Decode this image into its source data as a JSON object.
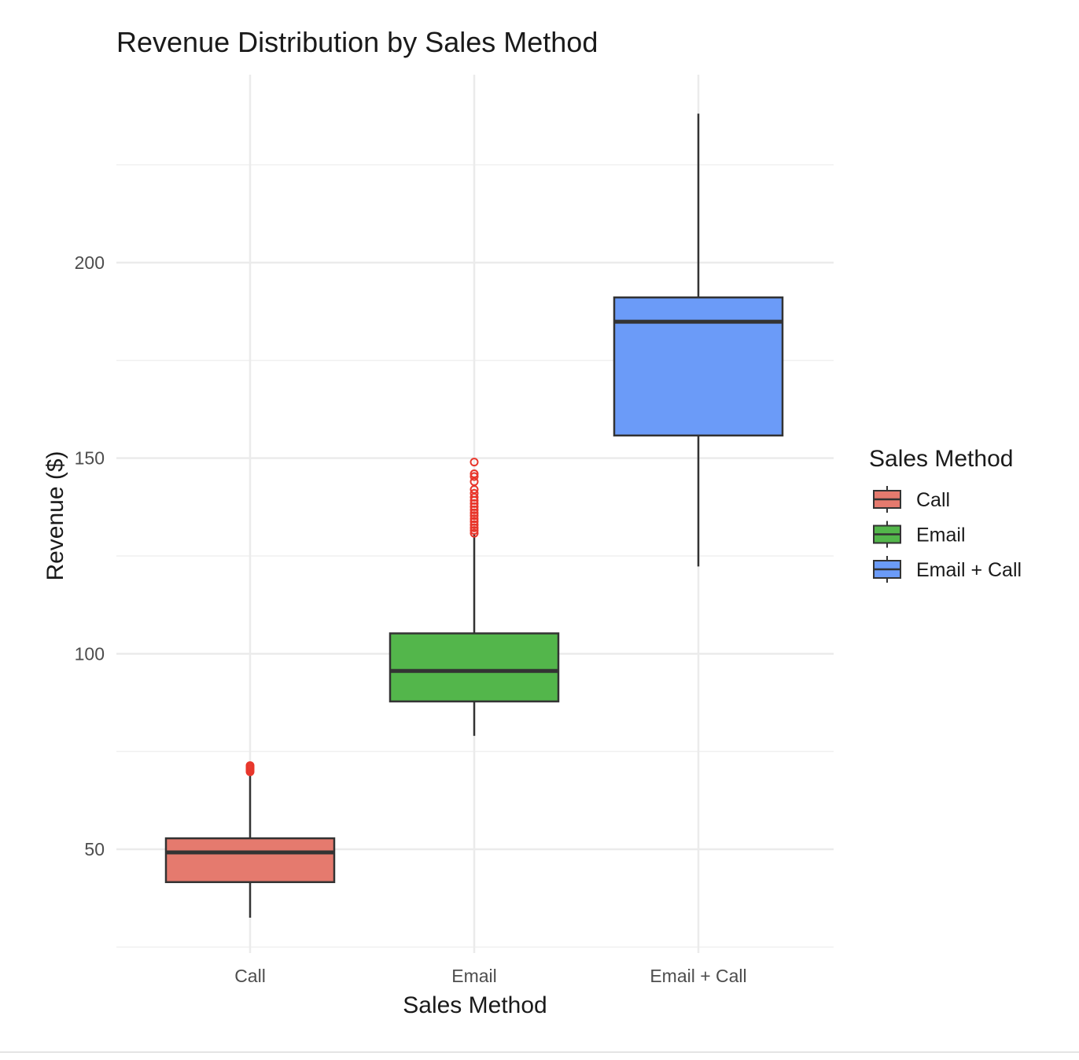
{
  "chart_data": {
    "type": "boxplot",
    "title": "Revenue Distribution by Sales Method",
    "xlabel": "Sales Method",
    "ylabel": "Revenue ($)",
    "categories": [
      "Call",
      "Email",
      "Email + Call"
    ],
    "ylim": [
      25,
      242
    ],
    "yticks": [
      50,
      100,
      150,
      200
    ],
    "grid": true,
    "legend": {
      "title": "Sales Method",
      "position": "right",
      "entries": [
        "Call",
        "Email",
        "Email + Call"
      ]
    },
    "colors": [
      "#E57A6E",
      "#53B64B",
      "#6B9BF8"
    ],
    "outlier_color": "#E8362B",
    "box_stroke": "#333333",
    "series": [
      {
        "category": "Call",
        "whisker_low": 32.5,
        "q1": 41.6,
        "median": 49.2,
        "q3": 52.8,
        "whisker_high": 69.5,
        "outliers": [
          69.8,
          70.2,
          70.6,
          71.0,
          71.4
        ]
      },
      {
        "category": "Email",
        "whisker_low": 79.0,
        "q1": 87.8,
        "median": 95.6,
        "q3": 105.2,
        "whisker_high": 130.5,
        "outliers": [
          130.8,
          131.5,
          132.2,
          133.0,
          133.8,
          134.5,
          135.3,
          136.0,
          136.8,
          137.6,
          138.4,
          139.2,
          140.0,
          141.0,
          142.0,
          144.0,
          145.3,
          146.0,
          149.0
        ]
      },
      {
        "category": "Email + Call",
        "whisker_low": 122.3,
        "q1": 155.8,
        "median": 184.9,
        "q3": 191.1,
        "whisker_high": 238.1,
        "outliers": []
      }
    ]
  }
}
